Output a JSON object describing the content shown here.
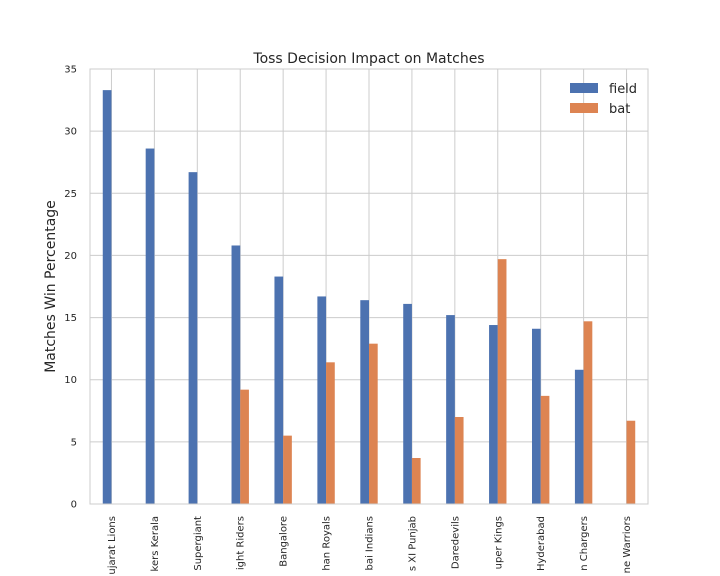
{
  "chart_data": {
    "type": "bar",
    "title": "Toss Decision Impact on Matches",
    "xlabel": "",
    "ylabel": "Matches Win Percentage",
    "ylim": [
      0,
      35
    ],
    "yticks": [
      0,
      5,
      10,
      15,
      20,
      25,
      30,
      35
    ],
    "grid": true,
    "legend_position": "top-right",
    "categories": [
      "ujarat Lions",
      "kers Kerala",
      "Supergiant",
      "ight Riders",
      "Bangalore",
      "han Royals",
      "bai Indians",
      "s XI Punjab",
      "Daredevils",
      "uper Kings",
      "Hyderabad",
      "n Chargers",
      "ne Warriors"
    ],
    "series": [
      {
        "name": "field",
        "color": "#4c72b0",
        "values": [
          33.3,
          28.6,
          26.7,
          20.8,
          18.3,
          16.7,
          16.4,
          16.1,
          15.2,
          14.4,
          14.1,
          10.8,
          0
        ]
      },
      {
        "name": "bat",
        "color": "#dd8452",
        "values": [
          0,
          0,
          0,
          9.2,
          5.5,
          11.4,
          12.9,
          3.7,
          7.0,
          19.7,
          8.7,
          14.7,
          6.7
        ]
      }
    ]
  }
}
